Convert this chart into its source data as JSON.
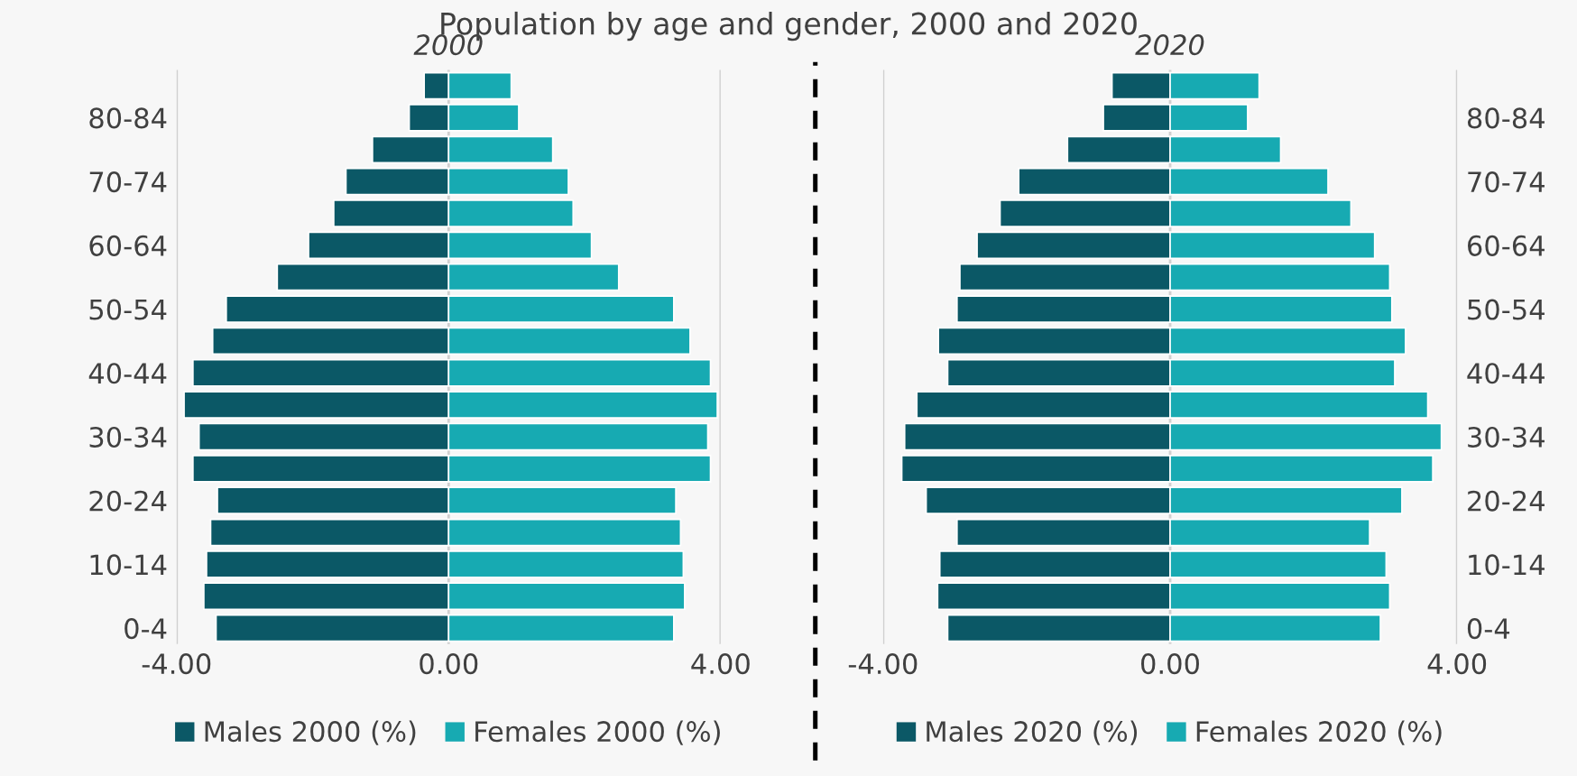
{
  "chart_data": [
    {
      "type": "bar",
      "orientation": "horizontal",
      "stacked": true,
      "title": "Population by age and gender, 2000 and 2020",
      "subtitle": "2000",
      "categories": [
        null,
        "80-84",
        null,
        "70-74",
        null,
        "60-64",
        null,
        "50-54",
        null,
        "40-44",
        null,
        "30-34",
        null,
        "20-24",
        null,
        "10-14",
        null,
        "0-4"
      ],
      "series": [
        {
          "name": "Males 2000 (%)",
          "color": "#0b5866",
          "values": [
            -0.36,
            -0.58,
            -1.12,
            -1.51,
            -1.69,
            -2.06,
            -2.52,
            -3.27,
            -3.47,
            -3.76,
            -3.89,
            -3.67,
            -3.76,
            -3.4,
            -3.5,
            -3.56,
            -3.6,
            -3.42
          ]
        },
        {
          "name": "Females 2000 (%)",
          "color": "#17aab2",
          "values": [
            0.92,
            1.03,
            1.53,
            1.76,
            1.83,
            2.1,
            2.5,
            3.31,
            3.55,
            3.85,
            3.95,
            3.81,
            3.85,
            3.34,
            3.41,
            3.45,
            3.47,
            3.31
          ]
        }
      ],
      "xlim": [
        -4,
        4
      ],
      "xticks": [
        {
          "value": -4,
          "label": "-4.00"
        },
        {
          "value": 0,
          "label": "0.00"
        },
        {
          "value": 4,
          "label": "4.00"
        }
      ],
      "grid": "x",
      "legend": "bottom"
    },
    {
      "type": "bar",
      "orientation": "horizontal",
      "stacked": true,
      "subtitle": "2020",
      "categories": [
        null,
        "80-84",
        null,
        "70-74",
        null,
        "60-64",
        null,
        "50-54",
        null,
        "40-44",
        null,
        "30-34",
        null,
        "20-24",
        null,
        "10-14",
        null,
        "0-4"
      ],
      "series": [
        {
          "name": "Males 2020 (%)",
          "color": "#0b5866",
          "values": [
            -0.81,
            -0.93,
            -1.43,
            -2.11,
            -2.37,
            -2.69,
            -2.93,
            -2.97,
            -3.23,
            -3.1,
            -3.53,
            -3.7,
            -3.74,
            -3.4,
            -2.97,
            -3.21,
            -3.24,
            -3.1
          ]
        },
        {
          "name": "Females 2020 (%)",
          "color": "#17aab2",
          "values": [
            1.24,
            1.08,
            1.54,
            2.2,
            2.52,
            2.85,
            3.06,
            3.09,
            3.28,
            3.13,
            3.59,
            3.78,
            3.66,
            3.23,
            2.78,
            3.01,
            3.06,
            2.93
          ]
        }
      ],
      "xlim": [
        -4,
        4
      ],
      "xticks": [
        {
          "value": -4,
          "label": "-4.00"
        },
        {
          "value": 0,
          "label": "0.00"
        },
        {
          "value": 4,
          "label": "4.00"
        }
      ],
      "grid": "x",
      "legend": "bottom"
    }
  ]
}
